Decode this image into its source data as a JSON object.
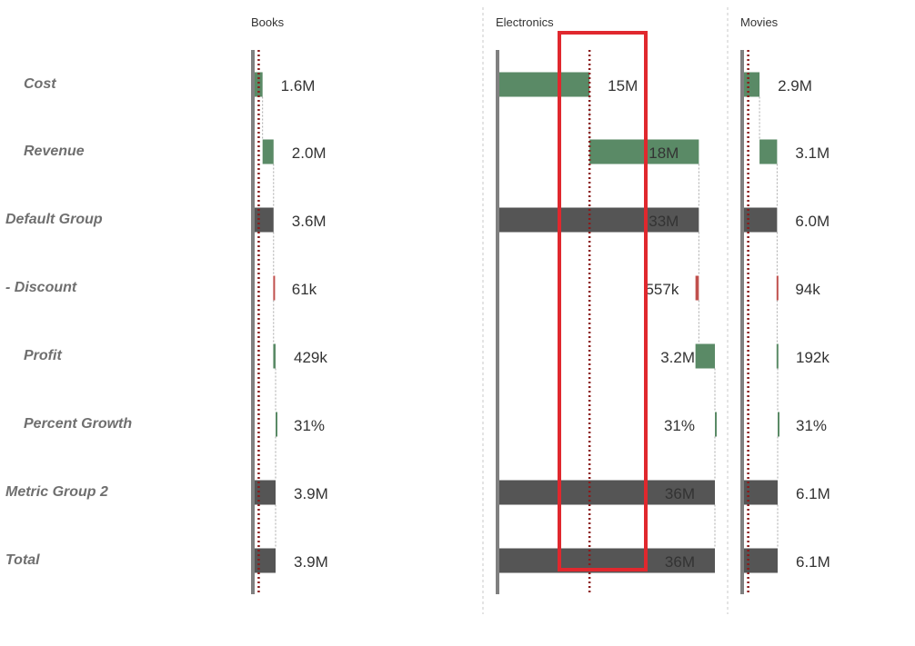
{
  "chart_data": {
    "type": "bar",
    "subtype": "waterfall",
    "panels": [
      "Books",
      "Electronics",
      "Movies"
    ],
    "rows": [
      {
        "label": "Cost",
        "kind": "increase",
        "indent": true
      },
      {
        "label": "Revenue",
        "kind": "increase",
        "indent": true
      },
      {
        "label": "Default Group",
        "kind": "total",
        "indent": false
      },
      {
        "label": "- Discount",
        "kind": "decrease",
        "indent": false
      },
      {
        "label": "Profit",
        "kind": "increase",
        "indent": true
      },
      {
        "label": "Percent Growth",
        "kind": "increase",
        "indent": true
      },
      {
        "label": "Metric Group 2",
        "kind": "total",
        "indent": false
      },
      {
        "label": "Total",
        "kind": "total",
        "indent": false
      }
    ],
    "series": [
      {
        "name": "Books",
        "labels": [
          "1.6M",
          "2.0M",
          "3.6M",
          "61k",
          "429k",
          "31%",
          "3.9M",
          "3.9M"
        ],
        "values": [
          1.6,
          2.0,
          3.6,
          0.061,
          0.429,
          3.1e-05,
          3.9,
          3.9
        ],
        "starts": [
          0,
          1.6,
          0,
          3.539,
          3.539,
          3.968,
          0,
          0
        ],
        "ends": [
          1.6,
          3.6,
          3.6,
          3.6,
          3.968,
          3.968,
          3.968,
          3.968
        ],
        "reference": 0.9
      },
      {
        "name": "Electronics",
        "labels": [
          "15M",
          "18M",
          "33M",
          "557k",
          "3.2M",
          "31%",
          "36M",
          "36M"
        ],
        "values": [
          15,
          18,
          33,
          0.557,
          3.2,
          3.1e-05,
          36,
          36
        ],
        "starts": [
          0,
          15,
          0,
          32.443,
          32.443,
          35.643,
          0,
          0
        ],
        "ends": [
          15,
          33,
          33,
          33,
          35.643,
          35.643,
          35.643,
          35.643
        ],
        "reference": 15
      },
      {
        "name": "Movies",
        "labels": [
          "2.9M",
          "3.1M",
          "6.0M",
          "94k",
          "192k",
          "31%",
          "6.1M",
          "6.1M"
        ],
        "values": [
          2.9,
          3.1,
          6.0,
          0.094,
          0.192,
          3.1e-05,
          6.1,
          6.1
        ],
        "starts": [
          0,
          2.9,
          0,
          5.906,
          5.906,
          6.098,
          0,
          0
        ],
        "ends": [
          2.9,
          6.0,
          6.0,
          6.0,
          6.098,
          6.098,
          6.098,
          6.098
        ],
        "reference": 0.9
      }
    ],
    "colors": {
      "increase": "#5a8a66",
      "decrease": "#c0504d",
      "total": "#555555",
      "axis": "#808080",
      "reference_line": "#8b1a1a",
      "highlight": "#e0282e",
      "separator": "#c8c8c8"
    },
    "highlight": {
      "panel": "Electronics",
      "around": "reference"
    }
  }
}
